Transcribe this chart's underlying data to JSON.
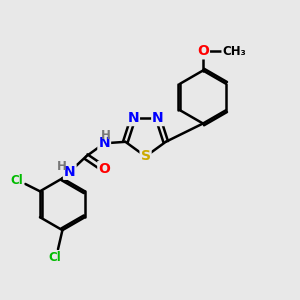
{
  "bg_color": "#e8e8e8",
  "bond_color": "#000000",
  "bond_width": 1.8,
  "atom_colors": {
    "N": "#0000ff",
    "S": "#ccaa00",
    "O": "#ff0000",
    "Cl": "#00bb00",
    "C": "#000000",
    "H": "#777777"
  },
  "font_size_atom": 10,
  "font_size_small": 8.5
}
